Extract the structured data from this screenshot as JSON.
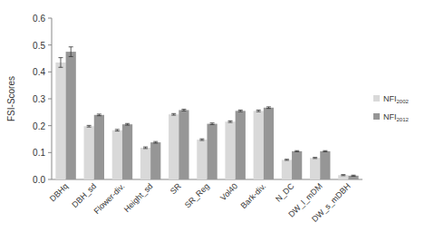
{
  "chart_data": {
    "type": "bar",
    "y_label": "FSI-Scores",
    "categories": [
      "DBHq",
      "DBH_sd",
      "Flower-div.",
      "Height_sd",
      "SR",
      "SR_Reg",
      "Vol40",
      "Bark-div.",
      "N_DC",
      "DW_l_mDM",
      "DW_s_mDBH"
    ],
    "series": [
      {
        "name": "NFI2002",
        "color": "#d9d9d9",
        "values": [
          0.435,
          0.198,
          0.183,
          0.118,
          0.242,
          0.148,
          0.215,
          0.255,
          0.073,
          0.08,
          0.016
        ],
        "errors": [
          0.018,
          0.003,
          0.003,
          0.003,
          0.003,
          0.003,
          0.003,
          0.003,
          0.002,
          0.002,
          0.002
        ]
      },
      {
        "name": "NFI2012",
        "color": "#969696",
        "values": [
          0.475,
          0.24,
          0.205,
          0.138,
          0.258,
          0.207,
          0.255,
          0.267,
          0.105,
          0.105,
          0.014
        ],
        "errors": [
          0.018,
          0.003,
          0.003,
          0.003,
          0.003,
          0.003,
          0.003,
          0.003,
          0.002,
          0.002,
          0.002
        ]
      }
    ],
    "ylim": [
      0,
      0.6
    ],
    "yticks": [
      {
        "value": 0,
        "label": "0.0"
      },
      0.1,
      0.2,
      0.3,
      0.4,
      0.5,
      0.6
    ],
    "grid": false,
    "legend": "right"
  }
}
